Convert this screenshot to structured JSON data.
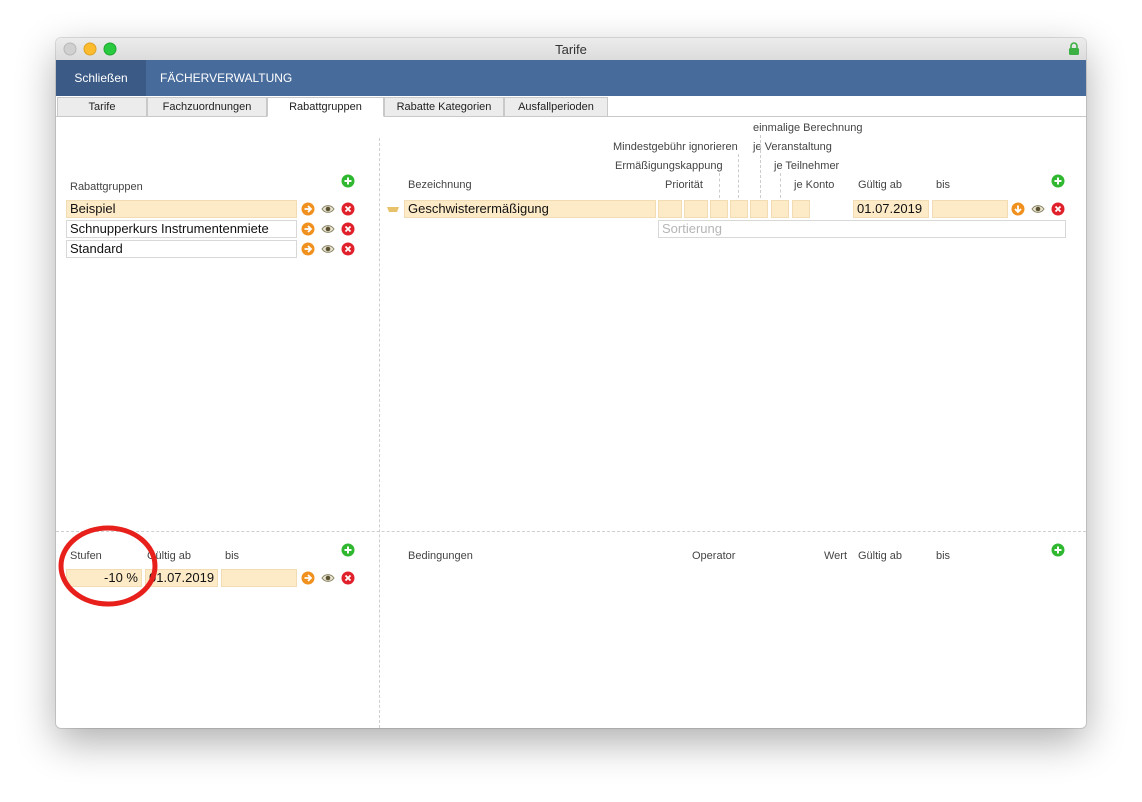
{
  "window": {
    "title": "Tarife"
  },
  "toolbar": {
    "close": "Schließen",
    "menu": "FÄCHERVERWALTUNG"
  },
  "tabs": [
    "Tarife",
    "Fachzuordnungen",
    "Rabattgruppen",
    "Rabatte Kategorien",
    "Ausfallperioden"
  ],
  "groups": {
    "label": "Rabattgruppen",
    "rows": [
      "Beispiel",
      "Schnupperkurs Instrumentenmiete",
      "Standard"
    ]
  },
  "discounts": {
    "headers": {
      "name": "Bezeichnung",
      "priority": "Priorität",
      "cap": "Ermäßigungskappung",
      "min_fee": "Mindestgebühr ignorieren",
      "once": "einmalige Berechnung",
      "per_event": "je Veranstaltung",
      "per_participant": "je Teilnehmer",
      "per_account": "je Konto",
      "valid_from": "Gültig ab",
      "until": "bis"
    },
    "rows": [
      {
        "name": "Geschwisterermäßigung",
        "valid_from": "01.07.2019"
      }
    ],
    "sort_placeholder": "Sortierung"
  },
  "levels": {
    "headers": {
      "name": "Stufen",
      "valid_from": "Gültig ab",
      "until": "bis"
    },
    "rows": [
      {
        "value": "-10 %",
        "valid_from": "01.07.2019"
      }
    ]
  },
  "conditions": {
    "headers": {
      "name": "Bedingungen",
      "operator": "Operator",
      "value": "Wert",
      "valid_from": "Gültig ab",
      "until": "bis"
    }
  }
}
